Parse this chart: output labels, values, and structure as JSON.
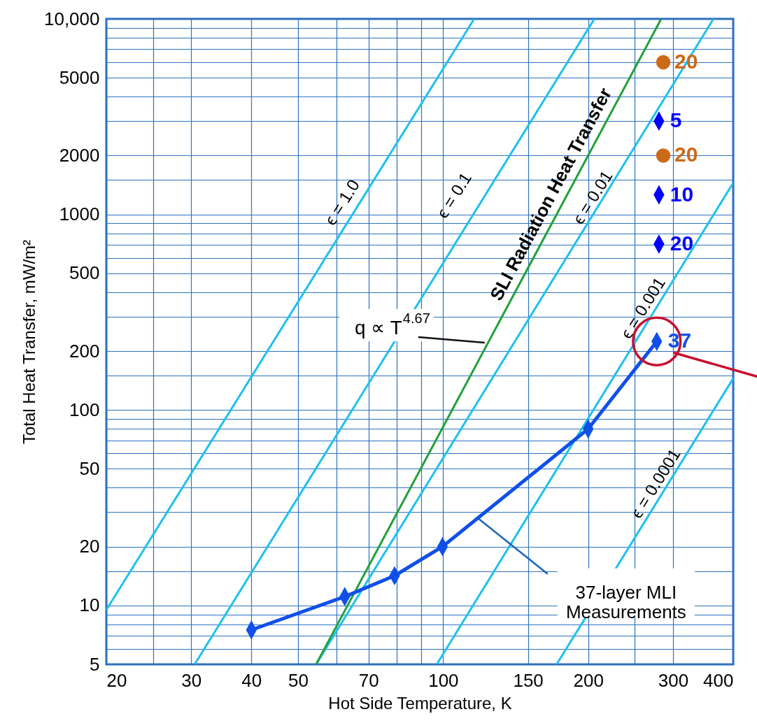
{
  "chart_data": {
    "type": "line",
    "xlabel": "Hot Side Temperature,  K",
    "ylabel": "Total Heat Transfer, mW/m²",
    "log": "xy",
    "grid": true,
    "xlim": [
      20,
      400
    ],
    "ylim": [
      5,
      10000
    ],
    "xticks": [
      20,
      {
        "value": 25,
        "label": null
      },
      30,
      40,
      50,
      {
        "value": 60,
        "label": null
      },
      70,
      {
        "value": 80,
        "label": null
      },
      {
        "value": 90,
        "label": null
      },
      100,
      150,
      200,
      {
        "value": 250,
        "label": null
      },
      300,
      400
    ],
    "yticks": [
      5,
      {
        "value": 6,
        "label": null
      },
      {
        "value": 7,
        "label": null
      },
      {
        "value": 8,
        "label": null
      },
      {
        "value": 9,
        "label": null
      },
      10,
      {
        "value": 15,
        "label": null
      },
      20,
      {
        "value": 30,
        "label": null
      },
      {
        "value": 40,
        "label": null
      },
      50,
      {
        "value": 60,
        "label": null
      },
      {
        "value": 70,
        "label": null
      },
      {
        "value": 80,
        "label": null
      },
      {
        "value": 90,
        "label": null
      },
      100,
      {
        "value": 150,
        "label": null
      },
      200,
      {
        "value": 300,
        "label": null
      },
      {
        "value": 400,
        "label": null
      },
      500,
      {
        "value": 600,
        "label": null
      },
      {
        "value": 700,
        "label": null
      },
      {
        "value": 800,
        "label": null
      },
      {
        "value": 900,
        "label": null
      },
      1000,
      {
        "value": 1500,
        "label": null
      },
      2000,
      {
        "value": 3000,
        "label": null
      },
      {
        "value": 4000,
        "label": null
      },
      5000,
      {
        "value": 6000,
        "label": null
      },
      {
        "value": 7000,
        "label": null
      },
      {
        "value": 8000,
        "label": null
      },
      {
        "value": 9000,
        "label": null
      },
      {
        "value": 10000,
        "label": "10,000"
      }
    ],
    "series": [
      {
        "color": "#1ec0f0",
        "x": [
          20,
          116
        ],
        "values": [
          9.5,
          10000
        ]
      },
      {
        "color": "#1ec0f0",
        "x": [
          30.5,
          206
        ],
        "values": [
          5,
          10000
        ]
      },
      {
        "color": "#1ec0f0",
        "x": [
          54.5,
          364
        ],
        "values": [
          5,
          10000
        ]
      },
      {
        "color": "#1ec0f0",
        "x": [
          97,
          400
        ],
        "values": [
          5,
          1450
        ]
      },
      {
        "color": "#1ec0f0",
        "x": [
          172,
          400
        ],
        "values": [
          5,
          145
        ]
      },
      {
        "color": "#22a03a",
        "x": [
          54.5,
          283.5
        ],
        "values": [
          5,
          10000
        ]
      },
      {
        "color": "#1050e8",
        "marker": "diamond",
        "x": [
          40,
          62.5,
          79.3,
          99.7,
          200,
          277.6
        ],
        "values": [
          7.5,
          11.1,
          14.2,
          20,
          80,
          224
        ]
      },
      {
        "type": "scatter",
        "color": "#0000ff",
        "marker": "diamond",
        "x": [
          280.5,
          280.5,
          280.5
        ],
        "values": [
          3000,
          1260,
          705
        ]
      },
      {
        "type": "scatter",
        "color": "#cc6a1a",
        "marker": "circle",
        "x": [
          286.4,
          286.4
        ],
        "values": [
          6000,
          2000
        ]
      }
    ],
    "annotations": [
      "ϵ = 1.0",
      "ϵ = 0.1",
      "SLI Radiation Heat Transfer",
      "ϵ = 0.01",
      "ϵ = 0.001",
      "ϵ = 0.0001",
      {
        "text": "q ∝ T$^{4.67}$",
        "x": 122,
        "y": 221
      },
      {
        "text": "37-layer MLI\nMeasurements",
        "x": 118,
        "y": 28
      },
      {
        "text": "37",
        "x": 277.6,
        "y": 224
      },
      {
        "text": "5",
        "x": 280.5,
        "y": 3000
      },
      {
        "text": "10",
        "x": 280.5,
        "y": 1260
      },
      {
        "text": "20",
        "x": 280.5,
        "y": 705
      },
      {
        "text": "20",
        "x": 286.4,
        "y": 6000
      },
      {
        "text": "20",
        "x": 286.4,
        "y": 2000
      }
    ]
  }
}
